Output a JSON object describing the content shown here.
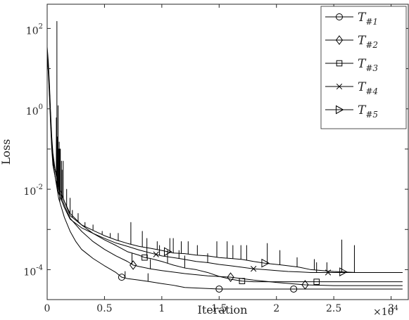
{
  "chart_data": {
    "type": "line",
    "title": "",
    "xlabel": "Iteration",
    "ylabel": "Loss",
    "x_scale_label": "×10",
    "x_scale_exponent": "4",
    "x_tick_values": [
      0,
      5000,
      10000,
      15000,
      20000,
      25000,
      30000
    ],
    "x_tick_labels": [
      "0",
      "0.5",
      "1",
      "1.5",
      "2",
      "2.5",
      "3"
    ],
    "y_tick_values": [
      0.0001,
      0.01,
      1,
      100
    ],
    "y_tick_bases": [
      "10",
      "10",
      "10",
      "10"
    ],
    "y_tick_exponents": [
      "-4",
      "-2",
      "0",
      "2"
    ],
    "xlim": [
      0,
      31500
    ],
    "ylim": [
      1.8e-05,
      400
    ],
    "y_scale": "log",
    "grid": false,
    "legend_position": "top-right",
    "series": [
      {
        "name": "T",
        "subscript": "#1",
        "marker": "circle",
        "points": [
          [
            0,
            30
          ],
          [
            100,
            12
          ],
          [
            200,
            3
          ],
          [
            300,
            0.6
          ],
          [
            400,
            0.15
          ],
          [
            500,
            0.05
          ],
          [
            700,
            0.02
          ],
          [
            1000,
            0.006
          ],
          [
            1500,
            0.002
          ],
          [
            2000,
            0.0009
          ],
          [
            2500,
            0.0005
          ],
          [
            3000,
            0.00032
          ],
          [
            4000,
            0.00019
          ],
          [
            5000,
            0.000125
          ],
          [
            6000,
            8.5e-05
          ],
          [
            6500,
            6.5e-05
          ],
          [
            7000,
            6e-05
          ],
          [
            8000,
            5.5e-05
          ],
          [
            9000,
            5e-05
          ],
          [
            10000,
            4.5e-05
          ],
          [
            11000,
            4.1e-05
          ],
          [
            12000,
            3.6e-05
          ],
          [
            15000,
            3.3e-05
          ],
          [
            20000,
            3.3e-05
          ],
          [
            21500,
            3.3e-05
          ],
          [
            31000,
            3.3e-05
          ]
        ],
        "marker_points": [
          [
            6500,
            6.5e-05
          ],
          [
            15000,
            3.3e-05
          ],
          [
            21500,
            3.3e-05
          ]
        ],
        "spikes": [
          [
            900,
            0.2
          ],
          [
            1100,
            0.08
          ],
          [
            6800,
            9e-05
          ],
          [
            8800,
            8e-05
          ]
        ]
      },
      {
        "name": "T",
        "subscript": "#2",
        "marker": "diamond",
        "points": [
          [
            0,
            25
          ],
          [
            100,
            10
          ],
          [
            200,
            2.5
          ],
          [
            300,
            0.5
          ],
          [
            400,
            0.12
          ],
          [
            500,
            0.06
          ],
          [
            700,
            0.03
          ],
          [
            1000,
            0.01
          ],
          [
            1500,
            0.004
          ],
          [
            2000,
            0.0019
          ],
          [
            3000,
            0.0009
          ],
          [
            4000,
            0.0005
          ],
          [
            5000,
            0.00032
          ],
          [
            6000,
            0.00022
          ],
          [
            7000,
            0.00016
          ],
          [
            7500,
            0.00013
          ],
          [
            8000,
            0.00012
          ],
          [
            9000,
            0.000105
          ],
          [
            10000,
            9.5e-05
          ],
          [
            12000,
            8e-05
          ],
          [
            14000,
            7e-05
          ],
          [
            16000,
            6.5e-05
          ],
          [
            18000,
            5.5e-05
          ],
          [
            20000,
            4.8e-05
          ],
          [
            22500,
            4.2e-05
          ],
          [
            25000,
            4e-05
          ],
          [
            31000,
            4e-05
          ]
        ],
        "marker_points": [
          [
            7500,
            0.00013
          ],
          [
            16000,
            6.5e-05
          ],
          [
            22500,
            4.2e-05
          ]
        ],
        "spikes": [
          [
            800,
            0.6
          ],
          [
            1000,
            0.1
          ],
          [
            1300,
            0.03
          ],
          [
            7400,
            0.00025
          ],
          [
            9000,
            0.00018
          ]
        ]
      },
      {
        "name": "T",
        "subscript": "#3",
        "marker": "square",
        "points": [
          [
            0,
            35
          ],
          [
            100,
            15
          ],
          [
            200,
            4
          ],
          [
            300,
            0.8
          ],
          [
            400,
            0.2
          ],
          [
            500,
            0.08
          ],
          [
            700,
            0.03
          ],
          [
            1000,
            0.012
          ],
          [
            1500,
            0.005
          ],
          [
            2000,
            0.0025
          ],
          [
            3000,
            0.0013
          ],
          [
            4000,
            0.0008
          ],
          [
            5000,
            0.00055
          ],
          [
            6000,
            0.0004
          ],
          [
            7000,
            0.00028
          ],
          [
            8000,
            0.00023
          ],
          [
            8500,
            0.0002
          ],
          [
            9000,
            0.00019
          ],
          [
            10000,
            0.00016
          ],
          [
            11000,
            0.00013
          ],
          [
            12000,
            0.00011
          ],
          [
            13000,
            0.0001
          ],
          [
            14000,
            8.5e-05
          ],
          [
            15000,
            6.8e-05
          ],
          [
            16000,
            5.8e-05
          ],
          [
            17000,
            5.2e-05
          ],
          [
            18000,
            5e-05
          ],
          [
            20000,
            5e-05
          ],
          [
            23500,
            5e-05
          ],
          [
            31000,
            5e-05
          ]
        ],
        "marker_points": [
          [
            8500,
            0.0002
          ],
          [
            17000,
            5.2e-05
          ],
          [
            23500,
            5e-05
          ]
        ],
        "spikes": [
          [
            950,
            1.2
          ],
          [
            1150,
            0.1
          ],
          [
            2000,
            0.006
          ],
          [
            8700,
            0.00035
          ],
          [
            10500,
            0.0003
          ],
          [
            12000,
            0.00022
          ]
        ]
      },
      {
        "name": "T",
        "subscript": "#4",
        "marker": "x",
        "points": [
          [
            0,
            20
          ],
          [
            100,
            8
          ],
          [
            200,
            2
          ],
          [
            300,
            0.4
          ],
          [
            400,
            0.1
          ],
          [
            500,
            0.04
          ],
          [
            700,
            0.02
          ],
          [
            1000,
            0.008
          ],
          [
            1500,
            0.0035
          ],
          [
            2000,
            0.0018
          ],
          [
            3000,
            0.0011
          ],
          [
            4000,
            0.0008
          ],
          [
            5000,
            0.0006
          ],
          [
            6000,
            0.00046
          ],
          [
            7000,
            0.00038
          ],
          [
            8000,
            0.00031
          ],
          [
            9000,
            0.00026
          ],
          [
            9500,
            0.00024
          ],
          [
            10000,
            0.00022
          ],
          [
            11000,
            0.0002
          ],
          [
            12000,
            0.00018
          ],
          [
            13000,
            0.00016
          ],
          [
            14000,
            0.00015
          ],
          [
            15000,
            0.000135
          ],
          [
            16000,
            0.000125
          ],
          [
            17000,
            0.000115
          ],
          [
            18000,
            0.000105
          ],
          [
            19000,
            0.0001
          ],
          [
            20000,
            9.5e-05
          ],
          [
            21000,
            9e-05
          ],
          [
            22000,
            8.8e-05
          ],
          [
            23000,
            8.5e-05
          ],
          [
            24500,
            8.5e-05
          ],
          [
            31000,
            8.5e-05
          ]
        ],
        "marker_points": [
          [
            9500,
            0.00024
          ],
          [
            18000,
            0.000105
          ],
          [
            24500,
            8.5e-05
          ]
        ],
        "spikes": [
          [
            850,
            150
          ],
          [
            1050,
            0.15
          ],
          [
            1250,
            0.05
          ],
          [
            9800,
            0.0004
          ],
          [
            11500,
            0.0003
          ],
          [
            14000,
            0.00025
          ],
          [
            23500,
            0.00015
          ]
        ]
      },
      {
        "name": "T",
        "subscript": "#5",
        "marker": "triangle-right",
        "points": [
          [
            0,
            28
          ],
          [
            100,
            11
          ],
          [
            200,
            3
          ],
          [
            300,
            0.6
          ],
          [
            400,
            0.15
          ],
          [
            500,
            0.06
          ],
          [
            700,
            0.03
          ],
          [
            1000,
            0.012
          ],
          [
            1500,
            0.005
          ],
          [
            2000,
            0.0022
          ],
          [
            3000,
            0.0013
          ],
          [
            4000,
            0.00095
          ],
          [
            5000,
            0.0007
          ],
          [
            6000,
            0.00055
          ],
          [
            7000,
            0.00045
          ],
          [
            8000,
            0.00038
          ],
          [
            9000,
            0.00034
          ],
          [
            10000,
            0.0003
          ],
          [
            10500,
            0.00028
          ],
          [
            11000,
            0.00026
          ],
          [
            12000,
            0.00025
          ],
          [
            13000,
            0.00023
          ],
          [
            14000,
            0.00022
          ],
          [
            15000,
            0.0002
          ],
          [
            16000,
            0.00019
          ],
          [
            17000,
            0.00018
          ],
          [
            18000,
            0.00016
          ],
          [
            19000,
            0.000145
          ],
          [
            20000,
            0.000135
          ],
          [
            21000,
            0.000125
          ],
          [
            22000,
            0.000115
          ],
          [
            23000,
            0.0001
          ],
          [
            24000,
            9.5e-05
          ],
          [
            25000,
            9e-05
          ],
          [
            25800,
            8.8e-05
          ],
          [
            27000,
            8.5e-05
          ],
          [
            31000,
            8.5e-05
          ]
        ],
        "marker_points": [
          [
            10500,
            0.00028
          ],
          [
            19000,
            0.000145
          ],
          [
            25800,
            8.8e-05
          ]
        ],
        "spikes": [
          [
            1100,
            0.1
          ],
          [
            1400,
            0.05
          ],
          [
            1700,
            0.01
          ],
          [
            2200,
            0.003
          ],
          [
            2700,
            0.0025
          ],
          [
            3300,
            0.0015
          ],
          [
            4000,
            0.0013
          ],
          [
            4800,
            0.0009
          ],
          [
            5500,
            0.0008
          ],
          [
            6200,
            0.0008
          ],
          [
            7300,
            0.0015
          ],
          [
            8300,
            0.0009
          ],
          [
            8700,
            0.0006
          ],
          [
            9600,
            0.0005
          ],
          [
            10700,
            0.0006
          ],
          [
            11000,
            0.0006
          ],
          [
            11700,
            0.0005
          ],
          [
            12300,
            0.0005
          ],
          [
            13100,
            0.0004
          ],
          [
            14800,
            0.0005
          ],
          [
            15700,
            0.0005
          ],
          [
            16200,
            0.0004
          ],
          [
            16900,
            0.0004
          ],
          [
            17400,
            0.0004
          ],
          [
            19200,
            0.00045
          ],
          [
            20300,
            0.0003
          ],
          [
            21800,
            0.0002
          ],
          [
            23300,
            0.00018
          ],
          [
            24400,
            0.00015
          ],
          [
            25700,
            0.00055
          ],
          [
            26800,
            0.0004
          ]
        ]
      }
    ]
  }
}
